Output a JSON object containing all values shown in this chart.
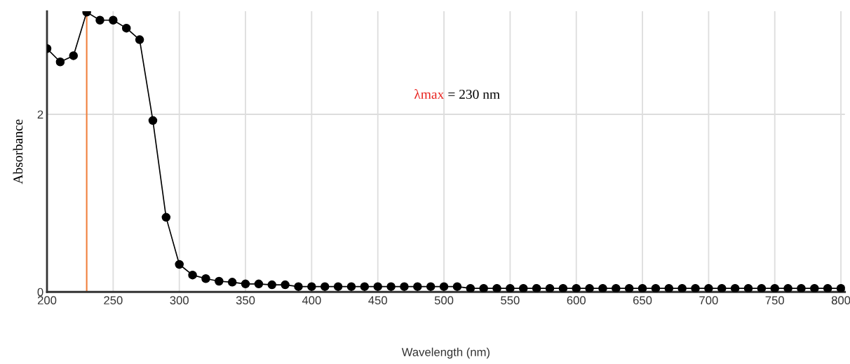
{
  "chart_data": {
    "type": "line",
    "xlabel": "Wavelength (nm)",
    "ylabel": "Absorbance",
    "x": [
      200,
      210,
      220,
      230,
      240,
      250,
      260,
      270,
      280,
      290,
      300,
      310,
      320,
      330,
      340,
      350,
      360,
      370,
      380,
      390,
      400,
      410,
      420,
      430,
      440,
      450,
      460,
      470,
      480,
      490,
      500,
      510,
      520,
      530,
      540,
      550,
      560,
      570,
      580,
      590,
      600,
      610,
      620,
      630,
      640,
      650,
      660,
      670,
      680,
      690,
      700,
      710,
      720,
      730,
      740,
      750,
      760,
      770,
      780,
      790,
      800
    ],
    "series": [
      {
        "color": "#000000",
        "values": [
          2.74,
          2.59,
          2.66,
          3.15,
          3.06,
          3.06,
          2.97,
          2.84,
          1.93,
          0.84,
          0.31,
          0.19,
          0.15,
          0.12,
          0.11,
          0.09,
          0.09,
          0.08,
          0.08,
          0.06,
          0.06,
          0.06,
          0.06,
          0.06,
          0.06,
          0.06,
          0.06,
          0.06,
          0.06,
          0.06,
          0.06,
          0.06,
          0.04,
          0.04,
          0.04,
          0.04,
          0.04,
          0.04,
          0.04,
          0.04,
          0.04,
          0.04,
          0.04,
          0.04,
          0.04,
          0.04,
          0.04,
          0.04,
          0.04,
          0.04,
          0.04,
          0.04,
          0.04,
          0.04,
          0.04,
          0.04,
          0.04,
          0.04,
          0.04,
          0.04,
          0.04
        ]
      }
    ],
    "xlim": [
      200,
      803
    ],
    "ylim": [
      0,
      3.16
    ],
    "xticks": [
      200,
      250,
      300,
      350,
      400,
      450,
      500,
      550,
      600,
      650,
      700,
      750,
      800
    ],
    "yticks": [
      0,
      2
    ],
    "ref_lines": [
      {
        "axis": "x",
        "value": 230,
        "color": "#f07f3c"
      }
    ],
    "annotations": [
      "λmax = 230 nm"
    ],
    "grid": true,
    "marker": "circle",
    "line_style": "solid",
    "legend": false
  }
}
